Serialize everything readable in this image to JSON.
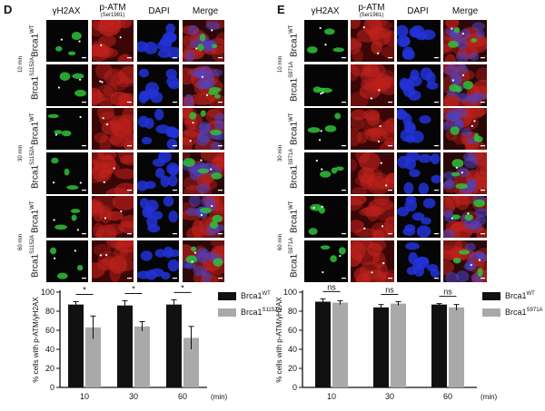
{
  "panel_d": {
    "letter": "D",
    "columns": [
      {
        "label": "γH2AX",
        "sub": ""
      },
      {
        "label": "p-ATM",
        "sub": "(Ser1981)"
      },
      {
        "label": "DAPI",
        "sub": ""
      },
      {
        "label": "Merge",
        "sub": ""
      }
    ],
    "rows": [
      {
        "gene": "Brca1",
        "allele": "WT"
      },
      {
        "gene": "Brca1",
        "allele": "S1152A"
      },
      {
        "gene": "Brca1",
        "allele": "WT"
      },
      {
        "gene": "Brca1",
        "allele": "S1152A"
      },
      {
        "gene": "Brca1",
        "allele": "WT"
      },
      {
        "gene": "Brca1",
        "allele": "S1152A"
      }
    ],
    "times": [
      "10 min",
      "30 min",
      "60 min"
    ]
  },
  "panel_e": {
    "letter": "E",
    "columns": [
      {
        "label": "γH2AX",
        "sub": ""
      },
      {
        "label": "p-ATM",
        "sub": "(Ser1981)"
      },
      {
        "label": "DAPI",
        "sub": ""
      },
      {
        "label": "Merge",
        "sub": ""
      }
    ],
    "rows": [
      {
        "gene": "Brca1",
        "allele": "WT"
      },
      {
        "gene": "Brca1",
        "allele": "S971A"
      },
      {
        "gene": "Brca1",
        "allele": "WT"
      },
      {
        "gene": "Brca1",
        "allele": "S971A"
      },
      {
        "gene": "Brca1",
        "allele": "WT"
      },
      {
        "gene": "Brca1",
        "allele": "S971A"
      }
    ],
    "times": [
      "10 min",
      "30 min",
      "60 min"
    ]
  },
  "colors": {
    "green_channel": "#2fc13a",
    "red_channel": "#c0221d",
    "blue_channel": "#2233d8",
    "bar_black": "#111111",
    "bar_gray": "#a9a9a9"
  },
  "chart_data": [
    {
      "type": "bar",
      "categories": [
        "10",
        "30",
        "60"
      ],
      "xlabel": "(min)",
      "ylabel": "% cells with p-ATM/γH2AX",
      "ylim": [
        0,
        100
      ],
      "yticks": [
        0,
        20,
        40,
        60,
        80,
        100
      ],
      "series": [
        {
          "name": "Brca1 WT",
          "gene": "Brca1",
          "allele": "WT",
          "values": [
            87,
            86,
            87
          ],
          "errors": [
            3,
            5,
            5
          ]
        },
        {
          "name": "Brca1 S1152A",
          "gene": "Brca1",
          "allele": "S1152A",
          "values": [
            63,
            64,
            52
          ],
          "errors": [
            12,
            5,
            12
          ]
        }
      ],
      "significance": [
        "*",
        "*",
        "*"
      ]
    },
    {
      "type": "bar",
      "categories": [
        "10",
        "30",
        "60"
      ],
      "xlabel": "(min)",
      "ylabel": "% cells with p-ATM/γH2AX",
      "ylim": [
        0,
        100
      ],
      "yticks": [
        0,
        20,
        40,
        60,
        80,
        100
      ],
      "series": [
        {
          "name": "Brca1 WT",
          "gene": "Brca1",
          "allele": "WT",
          "values": [
            90,
            84,
            87
          ],
          "errors": [
            3,
            3,
            1
          ]
        },
        {
          "name": "Brca1 S971A",
          "gene": "Brca1",
          "allele": "S971A",
          "values": [
            89,
            88,
            84
          ],
          "errors": [
            2,
            2,
            3
          ]
        }
      ],
      "significance": [
        "ns",
        "ns",
        "ns"
      ]
    }
  ]
}
